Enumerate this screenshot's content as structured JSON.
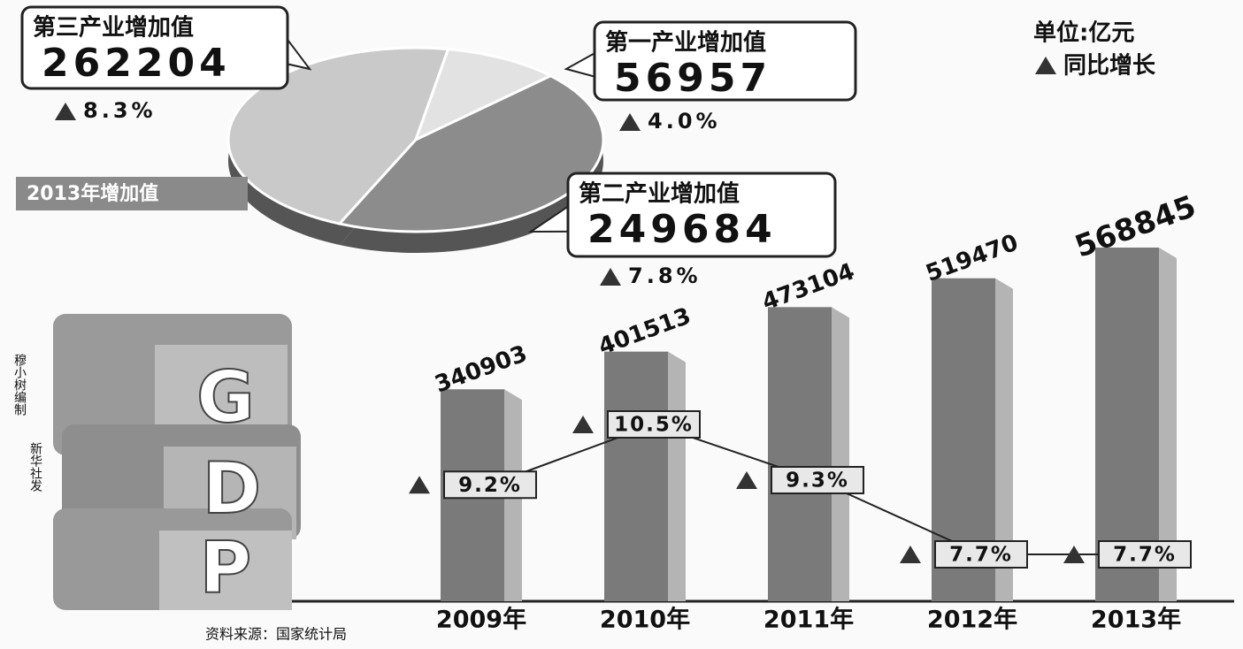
{
  "chart_data": [
    {
      "type": "pie",
      "title": "2013年增加值",
      "categories": [
        "第三产业增加值",
        "第一产业增加值",
        "第二产业增加值"
      ],
      "values": [
        262204,
        56957,
        249684
      ],
      "colors": [
        "#c9c9c9",
        "#e2e2e2",
        "#8c8c8c"
      ],
      "growth": {
        "values": [
          8.3,
          4.0,
          7.8
        ],
        "value_labels": [
          "8.3%",
          "4.0%",
          "7.8%"
        ]
      }
    },
    {
      "type": "bar",
      "unit": "单位:亿元",
      "categories": [
        "2009年",
        "2010年",
        "2011年",
        "2012年",
        "2013年"
      ],
      "values": [
        340903,
        401513,
        473104,
        519470,
        568845
      ],
      "color": "#7a7a7a",
      "growth": {
        "name": "同比增长",
        "values": [
          9.2,
          10.5,
          9.3,
          7.7,
          7.7
        ],
        "value_labels": [
          "9.2%",
          "10.5%",
          "9.3%",
          "7.7%",
          "7.7%"
        ]
      }
    }
  ],
  "logo": [
    "G",
    "D",
    "P"
  ],
  "credit": [
    "穆小树编制",
    "新华社发"
  ],
  "source": "资料来源：国家统计局"
}
